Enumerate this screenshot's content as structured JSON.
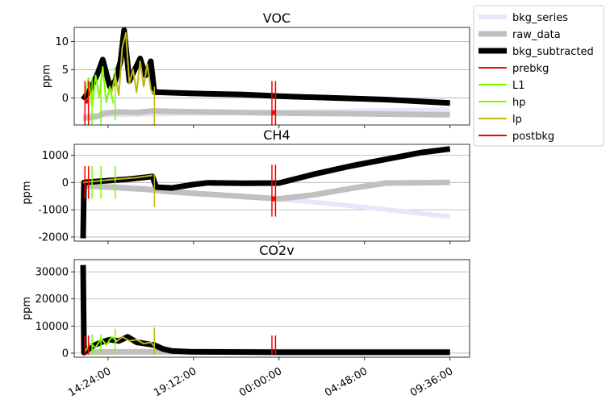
{
  "chart_data": {
    "type": "line",
    "x_tick_labels": [
      "14:24:00",
      "19:12:00",
      "00:00:00",
      "04:48:00",
      "09:36:00"
    ],
    "x_tick_hours": [
      14.4,
      19.2,
      24.0,
      28.8,
      33.6
    ],
    "x_range_hours": [
      12.5,
      34.7
    ],
    "legend": {
      "placement": "outside-top-right",
      "entries": [
        {
          "label": "bkg_series",
          "color": "#e6e6fa"
        },
        {
          "label": "raw_data",
          "color": "#c0c0c0"
        },
        {
          "label": "bkg_subtracted",
          "color": "#000000"
        },
        {
          "label": "prebkg",
          "color": "#ff0000"
        },
        {
          "label": "L1",
          "color": "#7cfc00"
        },
        {
          "label": "hp",
          "color": "#7cfc00"
        },
        {
          "label": "lp",
          "color": "#bdb715"
        },
        {
          "label": "postbkg",
          "color": "#ff0000"
        }
      ]
    },
    "panels": [
      {
        "title": "VOC",
        "ylabel": "ppm",
        "ylim": [
          -4.8,
          12.5
        ],
        "yticks": [
          0,
          5,
          10
        ],
        "grid": "horizontal",
        "series": [
          {
            "name": "bkg_series",
            "points": [
              [
                13.0,
                -3.1
              ],
              [
                16.5,
                -2.9
              ],
              [
                24.0,
                -2.5
              ],
              [
                29.0,
                -2.3
              ],
              [
                33.6,
                -2.1
              ]
            ]
          },
          {
            "name": "raw_data",
            "points": [
              [
                13.0,
                -3.6
              ],
              [
                13.8,
                -3.3
              ],
              [
                14.2,
                -2.7
              ],
              [
                15.0,
                -2.5
              ],
              [
                16.0,
                -2.6
              ],
              [
                16.9,
                -2.3
              ],
              [
                18.0,
                -2.4
              ],
              [
                24.0,
                -2.7
              ],
              [
                28.0,
                -2.8
              ],
              [
                33.6,
                -3.0
              ]
            ]
          },
          {
            "name": "bkg_subtracted",
            "points": [
              [
                13.0,
                -0.3
              ],
              [
                13.4,
                1.5
              ],
              [
                13.8,
                4.2
              ],
              [
                14.1,
                6.8
              ],
              [
                14.5,
                2.0
              ],
              [
                14.8,
                3.0
              ],
              [
                15.1,
                6.5
              ],
              [
                15.3,
                12.0
              ],
              [
                15.6,
                3.0
              ],
              [
                15.9,
                5.0
              ],
              [
                16.2,
                7.0
              ],
              [
                16.5,
                4.0
              ],
              [
                16.8,
                6.5
              ],
              [
                17.0,
                1.0
              ],
              [
                17.2,
                1.0
              ],
              [
                19.0,
                0.8
              ],
              [
                22.0,
                0.6
              ],
              [
                24.0,
                0.3
              ],
              [
                27.0,
                0.0
              ],
              [
                30.0,
                -0.3
              ],
              [
                33.6,
                -0.9
              ]
            ]
          },
          {
            "name": "L1",
            "points": [
              [
                13.1,
                0.5
              ],
              [
                13.3,
                3.5
              ],
              [
                13.5,
                -1.5
              ],
              [
                13.7,
                4.0
              ],
              [
                13.9,
                0.2
              ],
              [
                14.1,
                5.5
              ],
              [
                14.3,
                -0.8
              ],
              [
                14.5,
                2.0
              ],
              [
                14.7,
                -1.0
              ]
            ]
          },
          {
            "name": "lp",
            "points": [
              [
                14.6,
                1.0
              ],
              [
                14.8,
                4.0
              ],
              [
                15.0,
                0.5
              ],
              [
                15.2,
                9.0
              ],
              [
                15.4,
                11.5
              ],
              [
                15.6,
                2.5
              ],
              [
                15.8,
                5.0
              ],
              [
                16.0,
                1.0
              ],
              [
                16.2,
                6.5
              ],
              [
                16.4,
                2.0
              ],
              [
                16.6,
                6.0
              ],
              [
                16.8,
                1.5
              ],
              [
                17.0,
                0.5
              ]
            ]
          }
        ],
        "markers": [
          {
            "name": "prebkg",
            "x": [
              13.1,
              13.3
            ],
            "y": [
              -4.8,
              3.0
            ],
            "dot_y": -0.6
          },
          {
            "name": "L1",
            "x": [
              13.5,
              14.0
            ],
            "y": [
              -4.8,
              3.5
            ]
          },
          {
            "name": "hp",
            "x": [
              14.8
            ],
            "y": [
              -4.0,
              5.5
            ]
          },
          {
            "name": "lp",
            "x": [
              17.0
            ],
            "y": [
              -4.8,
              2.0
            ]
          },
          {
            "name": "postbkg",
            "x": [
              23.6,
              23.8
            ],
            "y": [
              -4.8,
              3.0
            ],
            "dot_y": -2.6
          }
        ]
      },
      {
        "title": "CH4",
        "ylabel": "ppm",
        "ylim": [
          -2150,
          1400
        ],
        "yticks": [
          -2000,
          -1000,
          0,
          1000
        ],
        "grid": "horizontal",
        "series": [
          {
            "name": "bkg_series",
            "points": [
              [
                13.0,
                -80
              ],
              [
                16.5,
                -200
              ],
              [
                18.0,
                -330
              ],
              [
                24.0,
                -600
              ],
              [
                28.0,
                -850
              ],
              [
                33.6,
                -1250
              ]
            ]
          },
          {
            "name": "raw_data",
            "points": [
              [
                13.0,
                -120
              ],
              [
                16.5,
                -250
              ],
              [
                17.5,
                -320
              ],
              [
                20.0,
                -430
              ],
              [
                24.0,
                -600
              ],
              [
                26.0,
                -450
              ],
              [
                28.0,
                -220
              ],
              [
                30.0,
                -20
              ],
              [
                33.6,
                0
              ]
            ]
          },
          {
            "name": "bkg_subtracted",
            "points": [
              [
                13.0,
                -2050
              ],
              [
                13.05,
                0
              ],
              [
                14.0,
                50
              ],
              [
                15.5,
                120
              ],
              [
                16.9,
                220
              ],
              [
                17.1,
                -170
              ],
              [
                18.0,
                -200
              ],
              [
                19.0,
                -90
              ],
              [
                20.0,
                -10
              ],
              [
                22.0,
                -30
              ],
              [
                24.0,
                -20
              ],
              [
                26.0,
                310
              ],
              [
                28.0,
                600
              ],
              [
                30.0,
                850
              ],
              [
                32.0,
                1100
              ],
              [
                33.6,
                1230
              ]
            ]
          },
          {
            "name": "lp",
            "points": [
              [
                13.0,
                0
              ],
              [
                14.5,
                100
              ],
              [
                16.0,
                180
              ],
              [
                16.9,
                260
              ]
            ]
          }
        ],
        "markers": [
          {
            "name": "prebkg",
            "x": [
              13.1,
              13.3
            ],
            "y": [
              -600,
              600
            ]
          },
          {
            "name": "L1",
            "x": [
              13.5,
              14.0
            ],
            "y": [
              -600,
              600
            ]
          },
          {
            "name": "hp",
            "x": [
              14.8
            ],
            "y": [
              -600,
              600
            ]
          },
          {
            "name": "lp",
            "x": [
              17.0
            ],
            "y": [
              -900,
              300
            ]
          },
          {
            "name": "postbkg",
            "x": [
              23.6,
              23.8
            ],
            "y": [
              -1250,
              650
            ],
            "dot_y": -600
          }
        ]
      },
      {
        "title": "CO2v",
        "ylabel": "ppm",
        "ylim": [
          -1500,
          34500
        ],
        "yticks": [
          0,
          10000,
          20000,
          30000
        ],
        "grid": "horizontal",
        "series": [
          {
            "name": "bkg_series",
            "points": [
              [
                13.0,
                400
              ],
              [
                33.6,
                400
              ]
            ]
          },
          {
            "name": "raw_data",
            "points": [
              [
                13.0,
                400
              ],
              [
                17.0,
                500
              ],
              [
                18.0,
                500
              ],
              [
                33.6,
                500
              ]
            ]
          },
          {
            "name": "bkg_subtracted",
            "points": [
              [
                13.0,
                32500
              ],
              [
                13.05,
                200
              ],
              [
                13.5,
                2500
              ],
              [
                14.0,
                4000
              ],
              [
                14.5,
                5000
              ],
              [
                15.0,
                4500
              ],
              [
                15.5,
                6000
              ],
              [
                16.0,
                4000
              ],
              [
                16.5,
                3500
              ],
              [
                17.0,
                3000
              ],
              [
                17.5,
                1500
              ],
              [
                18.0,
                800
              ],
              [
                19.0,
                500
              ],
              [
                24.0,
                300
              ],
              [
                33.6,
                300
              ]
            ]
          },
          {
            "name": "L1",
            "points": [
              [
                13.1,
                500
              ],
              [
                13.4,
                3500
              ],
              [
                13.7,
                2000
              ],
              [
                14.0,
                5500
              ],
              [
                14.3,
                3000
              ],
              [
                14.6,
                6000
              ],
              [
                14.9,
                4500
              ]
            ]
          },
          {
            "name": "lp",
            "points": [
              [
                14.8,
                4000
              ],
              [
                15.2,
                6000
              ],
              [
                15.6,
                4500
              ],
              [
                16.0,
                5000
              ],
              [
                16.4,
                3500
              ],
              [
                16.8,
                4000
              ],
              [
                17.0,
                2500
              ]
            ]
          }
        ],
        "markers": [
          {
            "name": "prebkg",
            "x": [
              13.1,
              13.3
            ],
            "y": [
              -500,
              6500
            ]
          },
          {
            "name": "L1",
            "x": [
              13.5,
              14.0
            ],
            "y": [
              -500,
              7000
            ]
          },
          {
            "name": "hp",
            "x": [
              14.8
            ],
            "y": [
              -500,
              9000
            ]
          },
          {
            "name": "lp",
            "x": [
              17.0
            ],
            "y": [
              -500,
              9500
            ]
          },
          {
            "name": "postbkg",
            "x": [
              23.6,
              23.8
            ],
            "y": [
              -500,
              6500
            ]
          }
        ]
      }
    ]
  }
}
